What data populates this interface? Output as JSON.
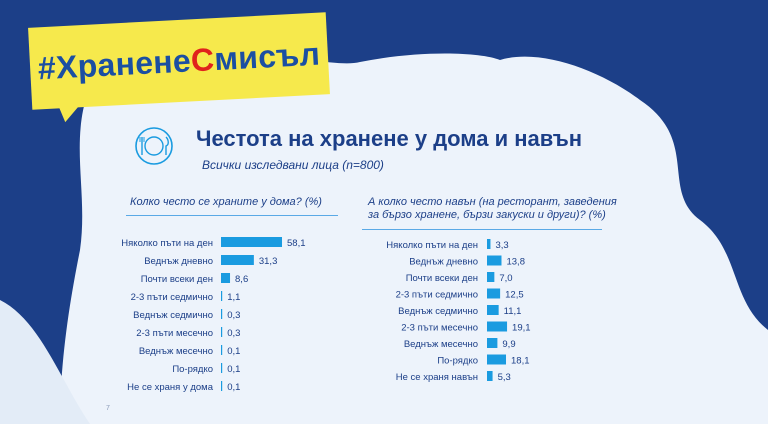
{
  "hashtag": {
    "part1": "#Хранене",
    "part2": "С",
    "part3": "мисъл"
  },
  "header": {
    "icon": "plate-fork-knife-icon",
    "title": "Честота на хранене у дома и навън",
    "subtitle": "Всички изследвани лица (n=800)"
  },
  "page_number": "7",
  "colors": {
    "bar": "#1a9be0",
    "brand_blue": "#1c3f88",
    "tag_yellow": "#f6e94c",
    "tag_red": "#e0221c"
  },
  "chart_data": [
    {
      "type": "bar",
      "orientation": "horizontal",
      "title": "Колко често се храните у дома? (%)",
      "categories": [
        "Няколко пъти на ден",
        "Веднъж дневно",
        "Почти всеки ден",
        "2-3 пъти седмично",
        "Веднъж седмично",
        "2-3 пъти месечно",
        "Веднъж месечно",
        "По-рядко",
        "Не се храня у дома"
      ],
      "values": [
        58.1,
        31.3,
        8.6,
        1.1,
        0.3,
        0.3,
        0.1,
        0.1,
        0.1
      ],
      "value_labels": [
        "58,1",
        "31,3",
        "8,6",
        "1,1",
        "0,3",
        "0,3",
        "0,1",
        "0,1",
        "0,1"
      ]
    },
    {
      "type": "bar",
      "orientation": "horizontal",
      "title": "А колко често навън (на ресторант, заведения за бързо хранене, бързи закуски и други)? (%)",
      "categories": [
        "Няколко пъти на ден",
        "Веднъж дневно",
        "Почти всеки ден",
        "2-3 пъти седмично",
        "Веднъж седмично",
        "2-3 пъти месечно",
        "Веднъж месечно",
        "По-рядко",
        "Не се храня навън"
      ],
      "values": [
        3.3,
        13.8,
        7.0,
        12.5,
        11.1,
        19.1,
        9.9,
        18.1,
        5.3
      ],
      "value_labels": [
        "3,3",
        "13,8",
        "7,0",
        "12,5",
        "11,1",
        "19,1",
        "9,9",
        "18,1",
        "5,3"
      ]
    }
  ]
}
